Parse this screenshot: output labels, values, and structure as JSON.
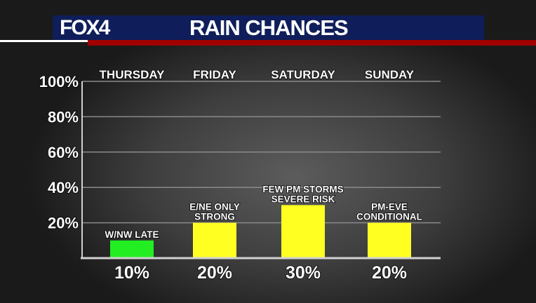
{
  "header": {
    "logo": "FOX4",
    "title": "RAIN CHANCES",
    "colors": {
      "banner": "#0f1e5a",
      "stripe": "#a00000"
    }
  },
  "chart_data": {
    "type": "bar",
    "title": "RAIN CHANCES",
    "categories": [
      "THURSDAY",
      "FRIDAY",
      "SATURDAY",
      "SUNDAY"
    ],
    "values": [
      10,
      20,
      30,
      20
    ],
    "value_labels": [
      "10%",
      "20%",
      "30%",
      "20%"
    ],
    "annotations": [
      [
        "W/NW LATE"
      ],
      [
        "E/NE ONLY",
        "STRONG"
      ],
      [
        "FEW PM STORMS",
        "SEVERE RISK"
      ],
      [
        "PM-EVE",
        "CONDITIONAL"
      ]
    ],
    "colors": [
      "#22ee22",
      "#ffff22",
      "#ffff22",
      "#ffff22"
    ],
    "yticks": [
      "20%",
      "40%",
      "60%",
      "80%",
      "100%"
    ],
    "ylim": [
      0,
      100
    ],
    "grid": true
  }
}
